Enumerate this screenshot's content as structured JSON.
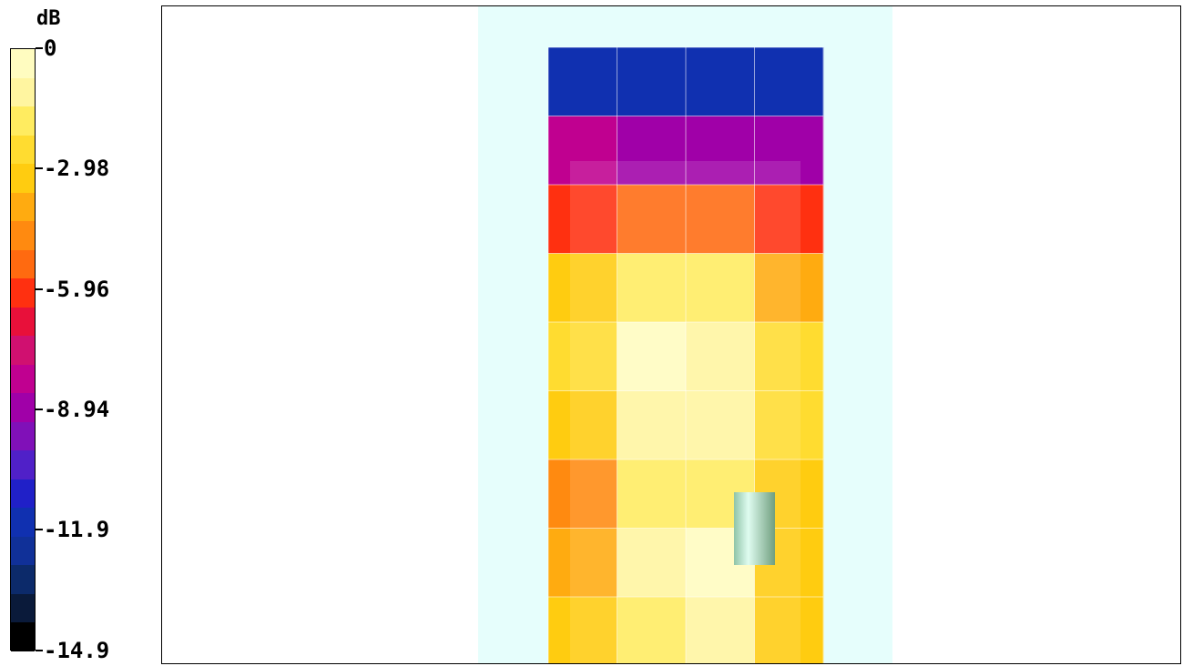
{
  "chart_data": {
    "type": "heatmap",
    "title": "",
    "colorbar": {
      "unit": "dB",
      "ticks": [
        "0",
        "-2.98",
        "-5.96",
        "-8.94",
        "-11.9",
        "-14.9"
      ],
      "tick_values": [
        0,
        -2.98,
        -5.96,
        -8.94,
        -11.9,
        -14.9
      ],
      "range": [
        -14.9,
        0
      ],
      "band_colors": [
        "#fffcc0",
        "#fff5a0",
        "#ffec60",
        "#ffdc30",
        "#ffcc10",
        "#ffab10",
        "#ff8a10",
        "#ff6a10",
        "#ff3010",
        "#e8103a",
        "#d01070",
        "#c00090",
        "#a000a8",
        "#8010b8",
        "#5020c8",
        "#2020c8",
        "#1030b0",
        "#103098",
        "#0c2a6a",
        "#0a1a3a",
        "#000000"
      ]
    },
    "grid": {
      "columns": 4,
      "rows": 9,
      "values": [
        [
          -11.5,
          -12.0,
          -12.0,
          -11.8
        ],
        [
          -8.5,
          -8.8,
          -8.8,
          -8.7
        ],
        [
          -6.2,
          -5.0,
          -5.0,
          -6.0
        ],
        [
          -3.2,
          -1.5,
          -1.8,
          -3.8
        ],
        [
          -2.5,
          -0.4,
          -0.8,
          -2.6
        ],
        [
          -3.0,
          -1.0,
          -1.2,
          -2.8
        ],
        [
          -4.8,
          -1.8,
          -1.6,
          -3.0
        ],
        [
          -4.0,
          -1.4,
          -0.5,
          -3.2
        ],
        [
          -3.4,
          -1.6,
          -1.2,
          -3.4
        ]
      ]
    }
  }
}
